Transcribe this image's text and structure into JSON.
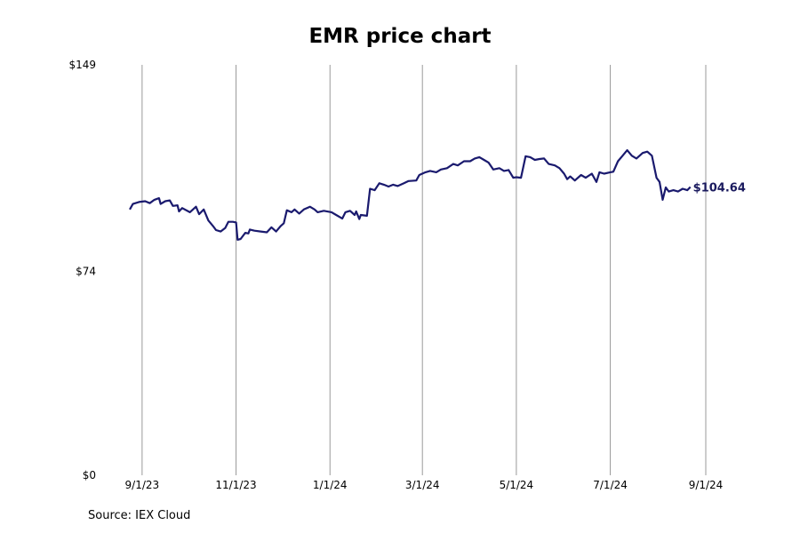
{
  "chart_data": {
    "type": "line",
    "title": "EMR price chart",
    "source": "Source: IEX Cloud",
    "end_label": "$104.64",
    "line_color": "#1a1a6e",
    "grid_color": "#999999",
    "ylim": [
      0,
      149
    ],
    "y_ticks": [
      {
        "value": 149,
        "label": "$149"
      },
      {
        "value": 74,
        "label": "$74"
      },
      {
        "value": 0,
        "label": "$0"
      }
    ],
    "x_range": [
      "2023-08-24",
      "2024-09-01"
    ],
    "x_ticks": [
      {
        "date": "2023-09-01",
        "label": "9/1/23"
      },
      {
        "date": "2023-11-01",
        "label": "11/1/23"
      },
      {
        "date": "2024-01-01",
        "label": "1/1/24"
      },
      {
        "date": "2024-03-01",
        "label": "3/1/24"
      },
      {
        "date": "2024-05-01",
        "label": "5/1/24"
      },
      {
        "date": "2024-07-01",
        "label": "7/1/24"
      },
      {
        "date": "2024-09-01",
        "label": "9/1/24"
      }
    ],
    "series": [
      {
        "points": [
          [
            "2023-08-24",
            96.5
          ],
          [
            "2023-08-26",
            98.5
          ],
          [
            "2023-08-30",
            99.2
          ],
          [
            "2023-09-03",
            99.5
          ],
          [
            "2023-09-06",
            98.8
          ],
          [
            "2023-09-09",
            100.0
          ],
          [
            "2023-09-12",
            100.6
          ],
          [
            "2023-09-13",
            98.5
          ],
          [
            "2023-09-16",
            99.5
          ],
          [
            "2023-09-19",
            99.8
          ],
          [
            "2023-09-21",
            97.8
          ],
          [
            "2023-09-24",
            98.0
          ],
          [
            "2023-09-25",
            95.8
          ],
          [
            "2023-09-27",
            97.0
          ],
          [
            "2023-10-02",
            95.5
          ],
          [
            "2023-10-06",
            97.5
          ],
          [
            "2023-10-08",
            94.8
          ],
          [
            "2023-10-11",
            96.5
          ],
          [
            "2023-10-14",
            92.5
          ],
          [
            "2023-10-17",
            90.5
          ],
          [
            "2023-10-19",
            89.0
          ],
          [
            "2023-10-22",
            88.5
          ],
          [
            "2023-10-25",
            89.8
          ],
          [
            "2023-10-27",
            92.0
          ],
          [
            "2023-10-30",
            92.0
          ],
          [
            "2023-11-01",
            91.8
          ],
          [
            "2023-11-02",
            85.5
          ],
          [
            "2023-11-04",
            85.8
          ],
          [
            "2023-11-07",
            88.0
          ],
          [
            "2023-11-09",
            87.8
          ],
          [
            "2023-11-10",
            89.2
          ],
          [
            "2023-11-13",
            88.8
          ],
          [
            "2023-11-17",
            88.5
          ],
          [
            "2023-11-21",
            88.2
          ],
          [
            "2023-11-24",
            90.0
          ],
          [
            "2023-11-27",
            88.5
          ],
          [
            "2023-11-30",
            90.5
          ],
          [
            "2023-12-02",
            91.5
          ],
          [
            "2023-12-04",
            96.2
          ],
          [
            "2023-12-07",
            95.5
          ],
          [
            "2023-12-09",
            96.5
          ],
          [
            "2023-12-12",
            95.0
          ],
          [
            "2023-12-15",
            96.5
          ],
          [
            "2023-12-19",
            97.5
          ],
          [
            "2023-12-22",
            96.5
          ],
          [
            "2023-12-24",
            95.5
          ],
          [
            "2023-12-28",
            96.0
          ],
          [
            "2024-01-02",
            95.5
          ],
          [
            "2024-01-05",
            94.5
          ],
          [
            "2024-01-09",
            93.2
          ],
          [
            "2024-01-11",
            95.5
          ],
          [
            "2024-01-14",
            96.0
          ],
          [
            "2024-01-17",
            94.5
          ],
          [
            "2024-01-18",
            95.8
          ],
          [
            "2024-01-20",
            93.0
          ],
          [
            "2024-01-21",
            94.5
          ],
          [
            "2024-01-25",
            94.2
          ],
          [
            "2024-01-27",
            104.0
          ],
          [
            "2024-01-30",
            103.5
          ],
          [
            "2024-02-02",
            106.0
          ],
          [
            "2024-02-05",
            105.5
          ],
          [
            "2024-02-08",
            104.8
          ],
          [
            "2024-02-11",
            105.5
          ],
          [
            "2024-02-14",
            105.0
          ],
          [
            "2024-02-18",
            106.0
          ],
          [
            "2024-02-21",
            106.8
          ],
          [
            "2024-02-26",
            107.0
          ],
          [
            "2024-02-28",
            109.0
          ],
          [
            "2024-03-03",
            110.0
          ],
          [
            "2024-03-06",
            110.5
          ],
          [
            "2024-03-10",
            110.0
          ],
          [
            "2024-03-13",
            111.0
          ],
          [
            "2024-03-17",
            111.5
          ],
          [
            "2024-03-21",
            113.0
          ],
          [
            "2024-03-24",
            112.5
          ],
          [
            "2024-03-28",
            114.0
          ],
          [
            "2024-04-01",
            114.0
          ],
          [
            "2024-04-04",
            115.0
          ],
          [
            "2024-04-07",
            115.5
          ],
          [
            "2024-04-10",
            114.5
          ],
          [
            "2024-04-13",
            113.5
          ],
          [
            "2024-04-16",
            111.0
          ],
          [
            "2024-04-20",
            111.5
          ],
          [
            "2024-04-23",
            110.5
          ],
          [
            "2024-04-26",
            110.8
          ],
          [
            "2024-04-29",
            108.0
          ],
          [
            "2024-05-01",
            108.2
          ],
          [
            "2024-05-04",
            108.0
          ],
          [
            "2024-05-07",
            115.8
          ],
          [
            "2024-05-10",
            115.5
          ],
          [
            "2024-05-13",
            114.5
          ],
          [
            "2024-05-16",
            114.8
          ],
          [
            "2024-05-19",
            115.0
          ],
          [
            "2024-05-22",
            113.0
          ],
          [
            "2024-05-26",
            112.5
          ],
          [
            "2024-05-29",
            111.5
          ],
          [
            "2024-06-01",
            109.5
          ],
          [
            "2024-06-03",
            107.5
          ],
          [
            "2024-06-05",
            108.5
          ],
          [
            "2024-06-08",
            107.0
          ],
          [
            "2024-06-12",
            109.0
          ],
          [
            "2024-06-15",
            108.0
          ],
          [
            "2024-06-19",
            109.5
          ],
          [
            "2024-06-22",
            106.5
          ],
          [
            "2024-06-24",
            110.0
          ],
          [
            "2024-06-27",
            109.5
          ],
          [
            "2024-07-01",
            110.0
          ],
          [
            "2024-07-03",
            110.2
          ],
          [
            "2024-07-06",
            114.0
          ],
          [
            "2024-07-09",
            116.0
          ],
          [
            "2024-07-12",
            118.0
          ],
          [
            "2024-07-15",
            116.0
          ],
          [
            "2024-07-18",
            115.0
          ],
          [
            "2024-07-22",
            117.0
          ],
          [
            "2024-07-25",
            117.5
          ],
          [
            "2024-07-28",
            116.0
          ],
          [
            "2024-07-31",
            108.0
          ],
          [
            "2024-08-02",
            106.5
          ],
          [
            "2024-08-04",
            100.0
          ],
          [
            "2024-08-06",
            104.5
          ],
          [
            "2024-08-08",
            103.0
          ],
          [
            "2024-08-11",
            103.5
          ],
          [
            "2024-08-14",
            103.0
          ],
          [
            "2024-08-17",
            104.0
          ],
          [
            "2024-08-20",
            103.5
          ],
          [
            "2024-08-22",
            104.64
          ]
        ]
      }
    ]
  }
}
